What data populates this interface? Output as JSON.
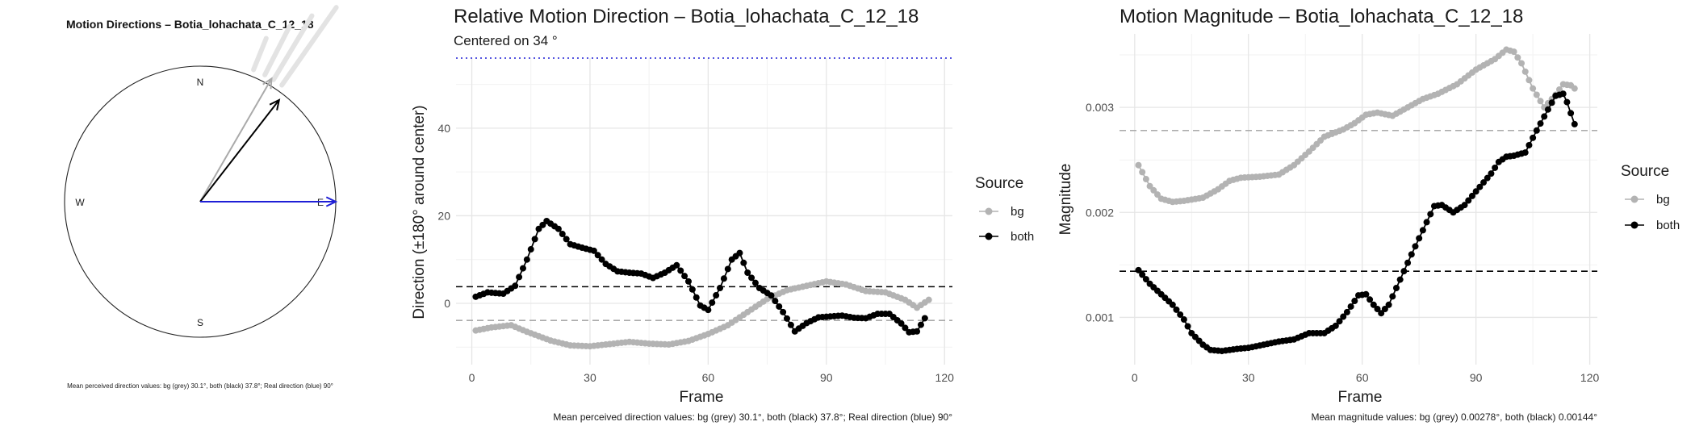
{
  "chart_data": [
    {
      "type": "compass",
      "title": "Motion Directions – Botia_lohachata_C_12_18",
      "compass_labels": {
        "n": "N",
        "e": "E",
        "s": "S",
        "w": "W"
      },
      "arrows": [
        {
          "name": "bg",
          "angle_deg": 30.1,
          "length": 1.05,
          "color": "#aaaaaa"
        },
        {
          "name": "both",
          "angle_deg": 37.8,
          "length": 0.95,
          "color": "#000000"
        },
        {
          "name": "real",
          "angle_deg": 90,
          "length": 1.0,
          "color": "#1f1fd6"
        }
      ],
      "background_rays_deg": [
        22,
        27,
        31,
        35
      ],
      "caption": "Mean perceived direction values: bg (grey) 30.1°, both (black) 37.8°; Real direction (blue) 90°"
    },
    {
      "type": "line",
      "title": "Relative Motion Direction – Botia_lohachata_C_12_18",
      "subtitle": "Centered on  34 °",
      "xlabel": "Frame",
      "ylabel": "Direction (±180° around center)",
      "xlim": [
        -4,
        122
      ],
      "ylim": [
        -14,
        56
      ],
      "xticks": [
        0,
        30,
        60,
        90,
        120
      ],
      "yticks": [
        0,
        20,
        40
      ],
      "grid": true,
      "legend": {
        "title": "Source",
        "position": "right",
        "entries": [
          "bg",
          "both"
        ]
      },
      "hlines": [
        {
          "y": 56,
          "style": "dotted",
          "color": "#1f1fd6"
        },
        {
          "y": 3.8,
          "style": "dashed",
          "color": "#000000"
        },
        {
          "y": -3.9,
          "style": "dashed",
          "color": "#aaaaaa"
        }
      ],
      "series": [
        {
          "name": "bg",
          "color": "#b3b3b3",
          "points": [
            [
              1,
              -6.2
            ],
            [
              5,
              -5.5
            ],
            [
              10,
              -5
            ],
            [
              14,
              -6.5
            ],
            [
              20,
              -8.5
            ],
            [
              25,
              -9.6
            ],
            [
              30,
              -9.8
            ],
            [
              35,
              -9.3
            ],
            [
              40,
              -8.8
            ],
            [
              45,
              -9.2
            ],
            [
              50,
              -9.4
            ],
            [
              55,
              -8.6
            ],
            [
              60,
              -7
            ],
            [
              65,
              -5
            ],
            [
              70,
              -2
            ],
            [
              75,
              1
            ],
            [
              80,
              3
            ],
            [
              85,
              4
            ],
            [
              90,
              5
            ],
            [
              95,
              4.3
            ],
            [
              100,
              2.8
            ],
            [
              105,
              2.5
            ],
            [
              110,
              0.8
            ],
            [
              113,
              -1
            ],
            [
              116,
              0.8
            ]
          ]
        },
        {
          "name": "both",
          "color": "#000000",
          "points": [
            [
              1,
              1.5
            ],
            [
              4,
              2.5
            ],
            [
              8,
              2.2
            ],
            [
              11,
              4
            ],
            [
              14,
              10
            ],
            [
              17,
              17
            ],
            [
              19,
              18.8
            ],
            [
              22,
              17
            ],
            [
              25,
              13.5
            ],
            [
              28,
              12.7
            ],
            [
              31,
              12
            ],
            [
              34,
              9
            ],
            [
              37,
              7.3
            ],
            [
              40,
              7
            ],
            [
              43,
              6.8
            ],
            [
              46,
              5.8
            ],
            [
              49,
              7
            ],
            [
              52,
              8.7
            ],
            [
              55,
              5
            ],
            [
              58,
              -0.5
            ],
            [
              60,
              -1.5
            ],
            [
              63,
              3.5
            ],
            [
              66,
              10
            ],
            [
              68,
              11.5
            ],
            [
              70,
              7
            ],
            [
              73,
              3.5
            ],
            [
              76,
              1.8
            ],
            [
              79,
              -2
            ],
            [
              82,
              -6.4
            ],
            [
              85,
              -4.5
            ],
            [
              88,
              -3.2
            ],
            [
              91,
              -3
            ],
            [
              94,
              -2.8
            ],
            [
              97,
              -3.3
            ],
            [
              100,
              -3.4
            ],
            [
              103,
              -2.4
            ],
            [
              106,
              -2.4
            ],
            [
              109,
              -4.6
            ],
            [
              111,
              -6.6
            ],
            [
              113,
              -6.4
            ],
            [
              115,
              -3.4
            ]
          ]
        }
      ],
      "caption": "Mean perceived direction values: bg (grey) 30.1°, both (black) 37.8°; Real direction (blue) 90°"
    },
    {
      "type": "line",
      "title": "Motion Magnitude – Botia_lohachata_C_12_18",
      "xlabel": "Frame",
      "ylabel": "Magnitude",
      "xlim": [
        -4,
        122
      ],
      "ylim": [
        0.00055,
        0.0037
      ],
      "xticks": [
        0,
        30,
        60,
        90,
        120
      ],
      "yticks": [
        0.001,
        0.002,
        0.003
      ],
      "ytick_labels": [
        "0.001",
        "0.002",
        "0.003"
      ],
      "grid": true,
      "legend": {
        "title": "Source",
        "position": "right",
        "entries": [
          "bg",
          "both"
        ]
      },
      "hlines": [
        {
          "y": 0.00278,
          "style": "dashed",
          "color": "#aaaaaa"
        },
        {
          "y": 0.00144,
          "style": "dashed",
          "color": "#000000"
        }
      ],
      "series": [
        {
          "name": "bg",
          "color": "#b3b3b3",
          "points": [
            [
              1,
              0.00245
            ],
            [
              4,
              0.00225
            ],
            [
              7,
              0.00213
            ],
            [
              10,
              0.0021
            ],
            [
              13,
              0.00211
            ],
            [
              18,
              0.00214
            ],
            [
              22,
              0.00222
            ],
            [
              25,
              0.0023
            ],
            [
              28,
              0.00233
            ],
            [
              33,
              0.00234
            ],
            [
              38,
              0.00236
            ],
            [
              42,
              0.00245
            ],
            [
              46,
              0.00258
            ],
            [
              50,
              0.00272
            ],
            [
              55,
              0.00279
            ],
            [
              58,
              0.00285
            ],
            [
              61,
              0.00293
            ],
            [
              64,
              0.00295
            ],
            [
              68,
              0.00292
            ],
            [
              72,
              0.003
            ],
            [
              76,
              0.00308
            ],
            [
              80,
              0.00313
            ],
            [
              85,
              0.00322
            ],
            [
              90,
              0.00336
            ],
            [
              95,
              0.00346
            ],
            [
              98,
              0.00355
            ],
            [
              100,
              0.00353
            ],
            [
              102,
              0.00342
            ],
            [
              105,
              0.00318
            ],
            [
              108,
              0.003
            ],
            [
              111,
              0.00312
            ],
            [
              113,
              0.00322
            ],
            [
              115,
              0.00321
            ],
            [
              116,
              0.00318
            ]
          ]
        },
        {
          "name": "both",
          "color": "#000000",
          "points": [
            [
              1,
              0.00145
            ],
            [
              4,
              0.00132
            ],
            [
              7,
              0.00122
            ],
            [
              10,
              0.00112
            ],
            [
              13,
              0.00098
            ],
            [
              15,
              0.00085
            ],
            [
              18,
              0.00074
            ],
            [
              20,
              0.00069
            ],
            [
              23,
              0.00068
            ],
            [
              27,
              0.0007
            ],
            [
              30,
              0.00071
            ],
            [
              34,
              0.00074
            ],
            [
              38,
              0.00077
            ],
            [
              42,
              0.00079
            ],
            [
              46,
              0.00085
            ],
            [
              50,
              0.00085
            ],
            [
              53,
              0.00092
            ],
            [
              56,
              0.00105
            ],
            [
              59,
              0.00121
            ],
            [
              61,
              0.00122
            ],
            [
              63,
              0.00112
            ],
            [
              65,
              0.00104
            ],
            [
              67,
              0.00112
            ],
            [
              70,
              0.00136
            ],
            [
              73,
              0.0016
            ],
            [
              76,
              0.00183
            ],
            [
              79,
              0.00206
            ],
            [
              81,
              0.00207
            ],
            [
              84,
              0.002
            ],
            [
              87,
              0.00207
            ],
            [
              90,
              0.0022
            ],
            [
              94,
              0.00237
            ],
            [
              96,
              0.00248
            ],
            [
              98,
              0.00253
            ],
            [
              100,
              0.00254
            ],
            [
              103,
              0.00257
            ],
            [
              106,
              0.00278
            ],
            [
              109,
              0.00298
            ],
            [
              111,
              0.00311
            ],
            [
              113,
              0.00313
            ],
            [
              114,
              0.00305
            ],
            [
              116,
              0.00284
            ]
          ]
        }
      ],
      "caption": "Mean magnitude values: bg (grey) 0.00278°, both (black) 0.00144°"
    }
  ]
}
